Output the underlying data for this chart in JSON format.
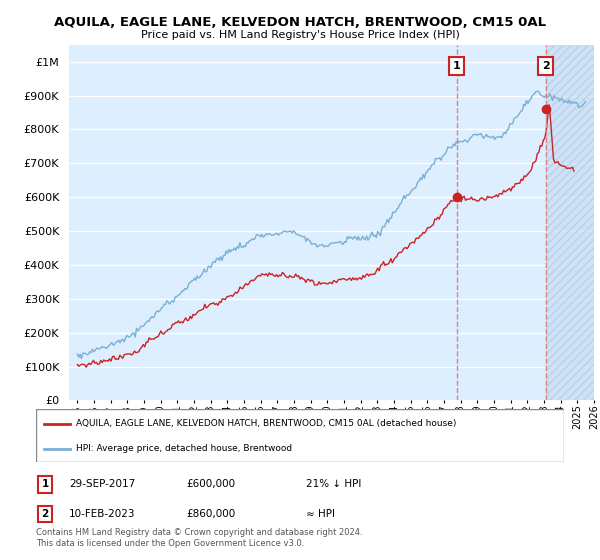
{
  "title": "AQUILA, EAGLE LANE, KELVEDON HATCH, BRENTWOOD, CM15 0AL",
  "subtitle": "Price paid vs. HM Land Registry's House Price Index (HPI)",
  "legend_entries": [
    "AQUILA, EAGLE LANE, KELVEDON HATCH, BRENTWOOD, CM15 0AL (detached house)",
    "HPI: Average price, detached house, Brentwood"
  ],
  "annotation1_date": "29-SEP-2017",
  "annotation1_price": "£600,000",
  "annotation1_hpi": "21% ↓ HPI",
  "annotation2_date": "10-FEB-2023",
  "annotation2_price": "£860,000",
  "annotation2_hpi": "≈ HPI",
  "footer": "Contains HM Land Registry data © Crown copyright and database right 2024.\nThis data is licensed under the Open Government Licence v3.0.",
  "red_color": "#cc2222",
  "blue_color": "#7aafd4",
  "dashed_color": "#e08080",
  "annotation_color": "#cc2222",
  "background_color": "#ddeeff",
  "grid_color": "#ffffff",
  "hatch_color": "#c8ddf0",
  "ylim": [
    0,
    1050000
  ],
  "yticks": [
    0,
    100000,
    200000,
    300000,
    400000,
    500000,
    600000,
    700000,
    800000,
    900000,
    1000000
  ],
  "xlim_start": 1994.5,
  "xlim_end": 2026.0,
  "sale1_x": 2017.75,
  "sale1_y": 600000,
  "sale2_x": 2023.1,
  "sale2_y": 860000
}
